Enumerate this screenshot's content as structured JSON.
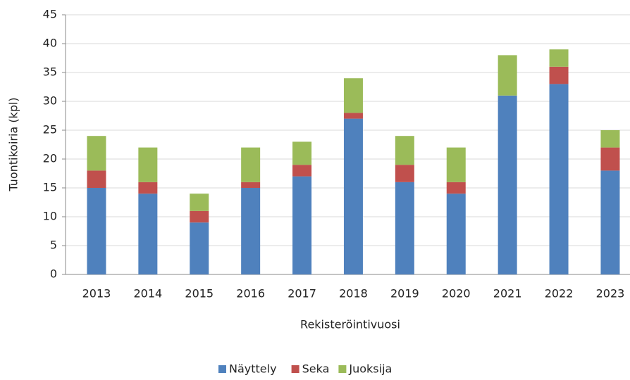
{
  "chart_data": {
    "type": "stacked_bar",
    "x_label": "Rekisteröintivuosi",
    "y_label": "Tuontikoiria (kpl)",
    "categories": [
      "2013",
      "2014",
      "2015",
      "2016",
      "2017",
      "2018",
      "2019",
      "2020",
      "2021",
      "2022",
      "2023"
    ],
    "series": [
      {
        "name": "Näyttely",
        "color": "#4f81bd",
        "values": [
          15,
          14,
          9,
          15,
          17,
          27,
          16,
          14,
          31,
          33,
          18
        ]
      },
      {
        "name": "Seka",
        "color": "#c0504d",
        "values": [
          3,
          2,
          2,
          1,
          2,
          1,
          3,
          2,
          0,
          3,
          4
        ]
      },
      {
        "name": "Juoksija",
        "color": "#9bbb59",
        "values": [
          6,
          6,
          3,
          6,
          4,
          6,
          5,
          6,
          7,
          3,
          3
        ]
      }
    ],
    "ylim": [
      0,
      45
    ],
    "yticks": [
      0,
      5,
      10,
      15,
      20,
      25,
      30,
      35,
      40,
      45
    ],
    "grid": true,
    "legend": "bottom"
  }
}
